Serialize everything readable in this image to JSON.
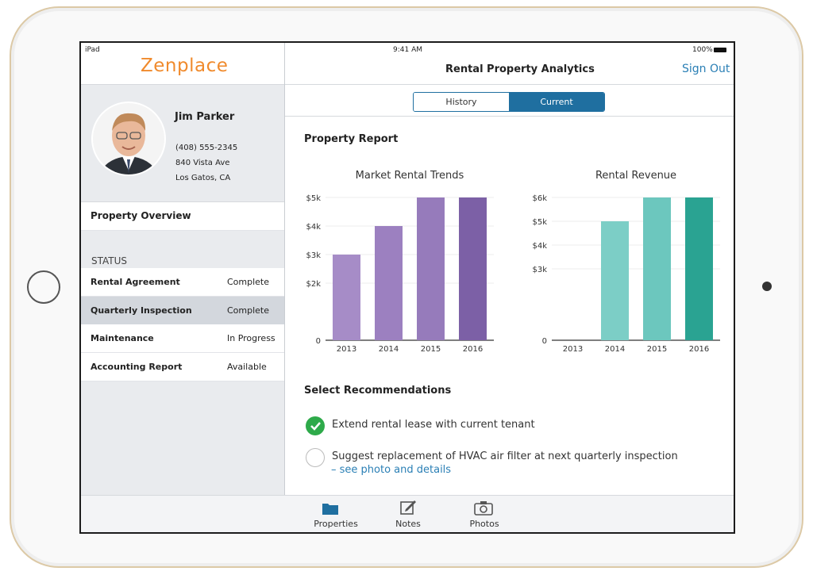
{
  "status_bar": {
    "device": "iPad",
    "time": "9:41 AM",
    "battery": "100%"
  },
  "sidebar": {
    "logo": "Zenplace",
    "profile": {
      "name": "Jim Parker",
      "phone": "(408) 555-2345",
      "address": "840 Vista Ave",
      "city": "Los Gatos, CA"
    },
    "menu": "Property Overview",
    "status_heading": "STATUS",
    "status_items": [
      {
        "label": "Rental Agreement",
        "status": "Complete",
        "selected": false
      },
      {
        "label": "Quarterly Inspection",
        "status": "Complete",
        "selected": true
      },
      {
        "label": "Maintenance",
        "status": "In Progress",
        "selected": false
      },
      {
        "label": "Accounting Report",
        "status": "Available",
        "selected": false
      }
    ]
  },
  "header": {
    "title": "Rental Property Analytics",
    "sign_out": "Sign Out"
  },
  "tabs": {
    "items": [
      "History",
      "Current"
    ],
    "active": 1
  },
  "report_title": "Property Report",
  "chart_data": [
    {
      "type": "bar",
      "title": "Market Rental Trends",
      "categories": [
        "2013",
        "2014",
        "2015",
        "2016"
      ],
      "values": [
        3000,
        4000,
        5000,
        5000
      ],
      "colors": [
        "#a68cc7",
        "#9c80c0",
        "#967bbb",
        "#7c60a6"
      ],
      "ylim": [
        0,
        5000
      ],
      "yticks": [
        0,
        {
          "value": 2000,
          "label": "$2k"
        },
        {
          "value": 3000,
          "label": "$3k"
        },
        {
          "value": 4000,
          "label": "$4k"
        },
        {
          "value": 5000,
          "label": "$5k"
        }
      ],
      "grid": true
    },
    {
      "type": "bar",
      "title": "Rental Revenue",
      "categories": [
        "2013",
        "2014",
        "2015",
        "2016"
      ],
      "values": [
        0,
        5000,
        6000,
        6000
      ],
      "colors": [
        "#7fd0c8",
        "#7ccec6",
        "#6cc7be",
        "#2aa392"
      ],
      "ylim": [
        0,
        6000
      ],
      "yticks": [
        0,
        {
          "value": 3000,
          "label": "$3k"
        },
        {
          "value": 4000,
          "label": "$4k"
        },
        {
          "value": 5000,
          "label": "$5k"
        },
        {
          "value": 6000,
          "label": "$6k"
        }
      ],
      "grid": true
    }
  ],
  "recommendations": {
    "title": "Select Recommendations",
    "items": [
      {
        "text": "Extend rental lease with current tenant",
        "checked": true
      },
      {
        "text": "Suggest replacement of HVAC air filter at next quarterly inspection",
        "link": "– see photo and details",
        "checked": false
      }
    ]
  },
  "tab_bar": [
    "Properties",
    "Notes",
    "Photos"
  ]
}
